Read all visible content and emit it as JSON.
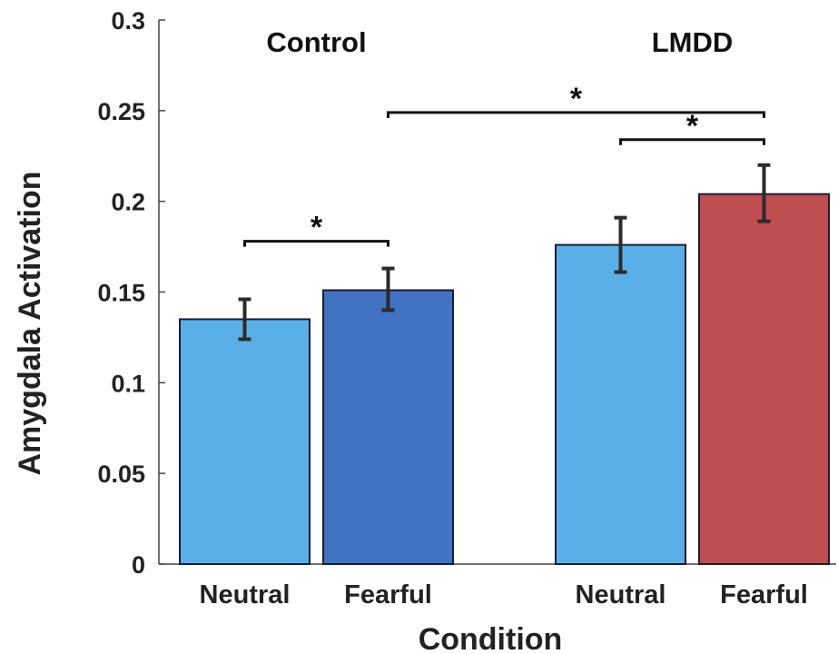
{
  "chart_data": {
    "type": "bar",
    "title": "",
    "xlabel": "Condition",
    "ylabel": "Amygdala Activation",
    "ylim": [
      0,
      0.3
    ],
    "yticks": [
      "0",
      "0.05",
      "0.1",
      "0.15",
      "0.2",
      "0.25",
      "0.3"
    ],
    "grid": false,
    "groups": [
      {
        "name": "Control",
        "bars": [
          {
            "category": "Neutral",
            "value": 0.135,
            "error_low": 0.124,
            "error_high": 0.146,
            "color": "#5ab0e6"
          },
          {
            "category": "Fearful",
            "value": 0.151,
            "error_low": 0.14,
            "error_high": 0.163,
            "color": "#4272c2"
          }
        ]
      },
      {
        "name": "LMDD",
        "bars": [
          {
            "category": "Neutral",
            "value": 0.176,
            "error_low": 0.161,
            "error_high": 0.191,
            "color": "#5ab0e6"
          },
          {
            "category": "Fearful",
            "value": 0.204,
            "error_low": 0.189,
            "error_high": 0.22,
            "color": "#be4e4f"
          }
        ]
      }
    ],
    "significance": [
      {
        "from_bar": 0,
        "to_bar": 1,
        "y": 0.178,
        "label": "*"
      },
      {
        "from_bar": 1,
        "to_bar": 3,
        "y": 0.249,
        "label": "*"
      },
      {
        "from_bar": 2,
        "to_bar": 3,
        "y": 0.234,
        "label": "*"
      }
    ]
  }
}
